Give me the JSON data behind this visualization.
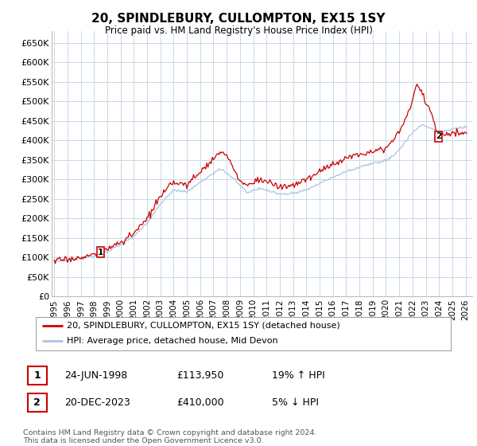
{
  "title": "20, SPINDLEBURY, CULLOMPTON, EX15 1SY",
  "subtitle": "Price paid vs. HM Land Registry's House Price Index (HPI)",
  "legend_line1": "20, SPINDLEBURY, CULLOMPTON, EX15 1SY (detached house)",
  "legend_line2": "HPI: Average price, detached house, Mid Devon",
  "annotation1_date": "24-JUN-1998",
  "annotation1_price": "£113,950",
  "annotation1_hpi": "19% ↑ HPI",
  "annotation2_date": "20-DEC-2023",
  "annotation2_price": "£410,000",
  "annotation2_hpi": "5% ↓ HPI",
  "footer": "Contains HM Land Registry data © Crown copyright and database right 2024.\nThis data is licensed under the Open Government Licence v3.0.",
  "hpi_color": "#aac4e0",
  "price_color": "#cc0000",
  "annotation_color": "#cc0000",
  "background_color": "#ffffff",
  "grid_color": "#c8d8e8",
  "ylim": [
    0,
    680000
  ],
  "yticks": [
    0,
    50000,
    100000,
    150000,
    200000,
    250000,
    300000,
    350000,
    400000,
    450000,
    500000,
    550000,
    600000,
    650000
  ],
  "xlim_start": 1994.8,
  "xlim_end": 2026.5,
  "sale1_x": 1998.48,
  "sale1_y": 113950,
  "sale2_x": 2023.97,
  "sale2_y": 410000
}
